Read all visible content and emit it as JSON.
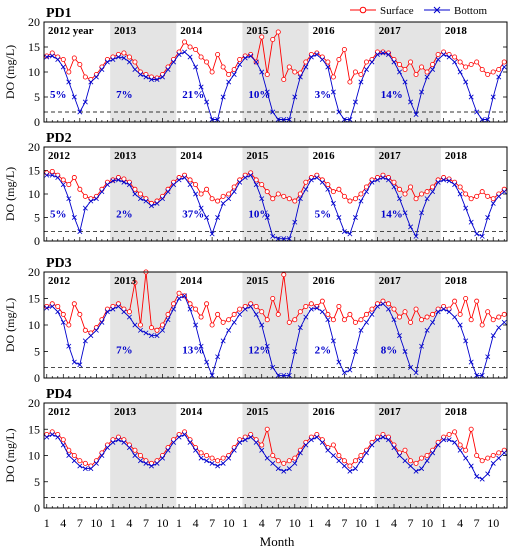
{
  "figure": {
    "xlabel": "Month",
    "ylabel": "DO (mg/L)",
    "xtick_labels": [
      "1",
      "4",
      "7",
      "10"
    ],
    "ytick_labels": [
      "0",
      "5",
      "10",
      "15",
      "20"
    ],
    "years": [
      "2012",
      "2013",
      "2014",
      "2015",
      "2016",
      "2017",
      "2018"
    ],
    "first_year_label": "2012 year",
    "threshold": 2,
    "colors": {
      "surface": "#ff0000",
      "bottom": "#0000cc",
      "shade": "#e4e4e4",
      "pct": "#0000cc"
    }
  },
  "legend": {
    "placement": "top-right",
    "surface": "Surface",
    "bottom": "Bottom"
  },
  "chart_data": [
    {
      "type": "line",
      "panel": "PD1",
      "ylim": [
        0,
        20
      ],
      "series": [
        {
          "name": "Surface",
          "values": [
            13.2,
            13.8,
            13.0,
            12.5,
            10.0,
            12.8,
            11.5,
            9.0,
            8.5,
            9.5,
            11.0,
            12.5,
            13.0,
            13.5,
            13.8,
            13.0,
            12.0,
            10.0,
            9.5,
            9.0,
            8.8,
            9.5,
            11.0,
            12.5,
            14.0,
            16.0,
            15.0,
            14.5,
            13.0,
            12.0,
            10.0,
            13.5,
            11.0,
            9.5,
            10.5,
            12.5,
            13.2,
            13.5,
            12.0,
            17.0,
            9.5,
            16.5,
            18.0,
            8.5,
            11.0,
            10.0,
            9.8,
            12.0,
            13.5,
            13.8,
            13.0,
            12.0,
            9.0,
            12.5,
            14.5,
            8.0,
            10.0,
            9.5,
            12.0,
            12.5,
            14.0,
            14.0,
            13.8,
            12.5,
            11.5,
            10.5,
            12.0,
            9.5,
            11.0,
            10.0,
            11.5,
            13.5,
            14.0,
            13.5,
            13.0,
            12.0,
            11.0,
            11.5,
            12.0,
            10.5,
            9.5,
            10.0,
            10.5,
            12.0
          ]
        },
        {
          "name": "Bottom",
          "values": [
            13.0,
            13.2,
            12.5,
            11.0,
            8.0,
            5.0,
            2.0,
            4.0,
            8.0,
            9.0,
            10.5,
            12.0,
            12.5,
            13.0,
            12.8,
            12.0,
            10.5,
            9.5,
            9.0,
            8.5,
            8.5,
            9.0,
            10.5,
            12.0,
            13.5,
            14.0,
            13.0,
            11.0,
            7.0,
            4.0,
            0.5,
            0.5,
            5.0,
            8.0,
            9.5,
            11.5,
            12.8,
            13.2,
            12.0,
            10.0,
            6.0,
            2.0,
            0.5,
            0.5,
            0.5,
            5.0,
            9.0,
            11.0,
            13.0,
            13.5,
            12.5,
            11.0,
            6.0,
            2.0,
            0.5,
            0.5,
            4.0,
            8.0,
            10.5,
            12.0,
            13.5,
            13.8,
            13.5,
            12.0,
            10.0,
            8.0,
            4.0,
            1.5,
            6.0,
            9.0,
            10.5,
            12.5,
            13.5,
            13.0,
            12.0,
            10.0,
            8.0,
            5.0,
            2.0,
            0.5,
            0.5,
            5.0,
            9.0,
            11.0
          ]
        }
      ],
      "annotations": [
        "5%",
        "7%",
        "21%",
        "10%",
        "3%",
        "14%"
      ]
    },
    {
      "type": "line",
      "panel": "PD2",
      "ylim": [
        0,
        20
      ],
      "series": [
        {
          "name": "Surface",
          "values": [
            14.5,
            14.8,
            14.0,
            13.0,
            12.0,
            13.5,
            11.0,
            9.5,
            9.0,
            9.5,
            11.0,
            12.5,
            13.0,
            13.5,
            13.2,
            12.5,
            11.0,
            10.0,
            9.0,
            8.0,
            8.5,
            9.5,
            11.0,
            12.5,
            13.5,
            14.0,
            13.0,
            12.0,
            10.0,
            11.0,
            9.0,
            8.5,
            9.5,
            10.0,
            11.5,
            13.0,
            14.0,
            14.5,
            13.0,
            12.0,
            10.5,
            9.0,
            10.0,
            9.5,
            9.0,
            8.5,
            10.0,
            12.5,
            13.5,
            14.0,
            13.0,
            12.0,
            10.5,
            11.0,
            9.5,
            8.5,
            9.0,
            10.0,
            11.5,
            13.0,
            13.5,
            14.0,
            13.5,
            12.5,
            11.0,
            10.0,
            11.5,
            9.0,
            10.0,
            10.5,
            11.5,
            13.0,
            13.5,
            13.2,
            12.5,
            11.5,
            10.0,
            9.0,
            9.5,
            10.5,
            9.5,
            9.0,
            10.0,
            11.0
          ]
        },
        {
          "name": "Bottom",
          "values": [
            14.0,
            14.0,
            13.5,
            12.0,
            9.0,
            5.0,
            2.0,
            7.0,
            8.5,
            9.0,
            10.5,
            12.0,
            12.8,
            13.0,
            12.5,
            12.0,
            10.0,
            9.0,
            8.5,
            7.5,
            8.0,
            9.0,
            10.5,
            12.0,
            13.0,
            13.5,
            12.0,
            10.0,
            7.0,
            5.0,
            1.5,
            5.0,
            8.0,
            9.0,
            10.5,
            12.5,
            13.5,
            14.0,
            12.0,
            9.0,
            5.0,
            1.0,
            0.5,
            0.5,
            0.5,
            4.0,
            9.0,
            11.0,
            13.0,
            13.5,
            12.5,
            11.0,
            8.0,
            5.0,
            2.0,
            1.5,
            5.0,
            8.5,
            10.5,
            12.5,
            13.0,
            13.5,
            13.0,
            11.5,
            9.0,
            6.0,
            3.0,
            1.0,
            6.0,
            9.0,
            10.5,
            12.5,
            13.0,
            12.8,
            12.0,
            10.0,
            7.0,
            4.0,
            1.5,
            1.0,
            5.0,
            8.0,
            9.5,
            10.5
          ]
        }
      ],
      "annotations": [
        "5%",
        "2%",
        "37%",
        "10%",
        "5%",
        "14%"
      ]
    },
    {
      "type": "line",
      "panel": "PD3",
      "ylim": [
        0,
        20
      ],
      "series": [
        {
          "name": "Surface",
          "values": [
            13.5,
            14.0,
            13.5,
            12.0,
            10.0,
            14.0,
            12.0,
            9.0,
            8.5,
            9.5,
            11.0,
            13.0,
            13.5,
            14.0,
            13.0,
            12.5,
            18.0,
            10.0,
            20.0,
            9.5,
            9.0,
            10.0,
            12.0,
            14.0,
            16.0,
            15.5,
            14.0,
            13.0,
            11.5,
            14.0,
            10.0,
            12.0,
            10.5,
            11.0,
            12.0,
            13.0,
            13.5,
            14.0,
            13.5,
            12.5,
            11.0,
            15.0,
            12.0,
            19.5,
            10.5,
            11.0,
            12.5,
            13.5,
            14.0,
            13.5,
            14.5,
            12.0,
            11.0,
            13.5,
            11.0,
            12.0,
            10.5,
            11.0,
            12.0,
            13.0,
            14.0,
            14.5,
            14.0,
            13.0,
            11.5,
            12.5,
            10.5,
            13.0,
            11.0,
            11.5,
            12.0,
            13.0,
            13.5,
            13.0,
            14.5,
            12.0,
            15.0,
            11.0,
            14.5,
            10.0,
            12.5,
            11.0,
            11.5,
            12.0
          ]
        },
        {
          "name": "Bottom",
          "values": [
            13.2,
            13.5,
            12.5,
            10.5,
            6.0,
            3.0,
            2.5,
            7.0,
            8.0,
            9.0,
            10.5,
            12.5,
            13.0,
            13.5,
            12.5,
            11.5,
            10.0,
            9.0,
            8.5,
            8.0,
            8.0,
            9.0,
            11.0,
            13.0,
            15.0,
            15.5,
            13.0,
            10.0,
            6.0,
            3.0,
            0.5,
            4.0,
            7.0,
            9.0,
            10.5,
            12.0,
            13.0,
            13.5,
            12.0,
            10.0,
            6.0,
            2.0,
            0.5,
            0.5,
            0.5,
            5.0,
            9.5,
            11.5,
            13.0,
            13.2,
            12.5,
            11.0,
            7.0,
            3.0,
            1.0,
            1.5,
            5.0,
            9.0,
            10.5,
            12.0,
            13.5,
            14.0,
            13.0,
            11.0,
            8.0,
            5.0,
            2.0,
            1.0,
            6.0,
            9.0,
            10.5,
            12.5,
            13.0,
            12.5,
            11.5,
            10.0,
            7.0,
            3.0,
            0.5,
            0.5,
            4.0,
            8.0,
            9.5,
            10.5
          ]
        }
      ],
      "annotations": [
        "",
        "7%",
        "13%",
        "12%",
        "2%",
        "8%"
      ]
    },
    {
      "type": "line",
      "panel": "PD4",
      "ylim": [
        0,
        20
      ],
      "series": [
        {
          "name": "Surface",
          "values": [
            14.0,
            14.5,
            14.0,
            13.0,
            11.0,
            10.0,
            9.0,
            8.5,
            8.0,
            9.0,
            10.5,
            12.0,
            13.0,
            13.5,
            13.0,
            12.0,
            11.0,
            10.0,
            9.0,
            8.5,
            9.0,
            10.0,
            11.5,
            13.0,
            14.0,
            14.5,
            13.0,
            11.5,
            10.5,
            10.0,
            9.5,
            9.0,
            9.5,
            10.0,
            11.5,
            13.0,
            13.5,
            14.0,
            13.0,
            12.0,
            15.0,
            10.0,
            9.0,
            8.5,
            9.0,
            9.5,
            11.0,
            12.5,
            13.5,
            14.0,
            13.0,
            11.5,
            12.0,
            10.0,
            9.0,
            8.0,
            9.0,
            10.0,
            11.0,
            12.5,
            13.5,
            14.0,
            13.5,
            12.0,
            10.5,
            11.0,
            9.0,
            8.5,
            9.5,
            10.0,
            11.0,
            12.5,
            13.5,
            14.0,
            14.5,
            12.0,
            11.0,
            15.0,
            10.0,
            9.0,
            9.5,
            10.0,
            10.5,
            11.0
          ]
        },
        {
          "name": "Bottom",
          "values": [
            13.5,
            14.0,
            13.5,
            12.0,
            10.0,
            9.0,
            8.0,
            7.5,
            7.5,
            8.5,
            10.0,
            11.5,
            12.5,
            13.0,
            12.5,
            11.5,
            10.0,
            9.0,
            8.5,
            8.0,
            8.5,
            9.5,
            11.0,
            12.5,
            13.5,
            14.0,
            12.5,
            11.0,
            9.5,
            9.0,
            8.5,
            8.0,
            8.5,
            9.5,
            11.0,
            12.5,
            13.0,
            13.5,
            12.5,
            11.0,
            9.5,
            8.5,
            7.5,
            7.0,
            7.5,
            8.5,
            10.5,
            12.0,
            13.0,
            13.5,
            12.5,
            11.0,
            10.0,
            9.0,
            8.0,
            7.0,
            7.5,
            9.0,
            10.5,
            12.0,
            13.0,
            13.5,
            13.0,
            11.5,
            10.0,
            9.0,
            8.0,
            7.0,
            7.5,
            9.0,
            10.5,
            12.0,
            13.0,
            13.0,
            12.5,
            11.0,
            9.5,
            8.0,
            6.0,
            5.5,
            6.5,
            8.5,
            9.5,
            10.5
          ]
        }
      ],
      "annotations": [
        "",
        "",
        "",
        "",
        "",
        ""
      ]
    }
  ]
}
